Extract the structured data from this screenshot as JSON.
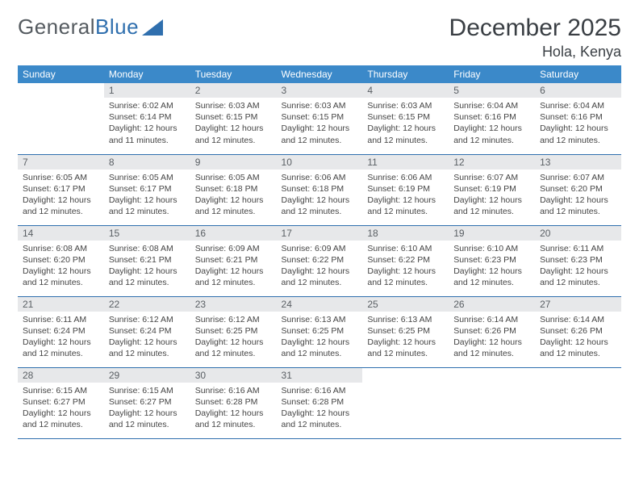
{
  "logo": {
    "text_gray": "General",
    "text_blue": "Blue"
  },
  "header": {
    "month": "December 2025",
    "location": "Hola, Kenya"
  },
  "colors": {
    "header_bg": "#3b89c9",
    "header_text": "#ffffff",
    "daynum_bg": "#e7e8ea",
    "rule": "#2f6fae",
    "logo_gray": "#555b60",
    "logo_blue": "#2f6fae"
  },
  "weekdays": [
    "Sunday",
    "Monday",
    "Tuesday",
    "Wednesday",
    "Thursday",
    "Friday",
    "Saturday"
  ],
  "weeks": [
    [
      {
        "n": "",
        "sr": "",
        "ss": "",
        "dl": ""
      },
      {
        "n": "1",
        "sr": "Sunrise: 6:02 AM",
        "ss": "Sunset: 6:14 PM",
        "dl": "Daylight: 12 hours and 11 minutes."
      },
      {
        "n": "2",
        "sr": "Sunrise: 6:03 AM",
        "ss": "Sunset: 6:15 PM",
        "dl": "Daylight: 12 hours and 12 minutes."
      },
      {
        "n": "3",
        "sr": "Sunrise: 6:03 AM",
        "ss": "Sunset: 6:15 PM",
        "dl": "Daylight: 12 hours and 12 minutes."
      },
      {
        "n": "4",
        "sr": "Sunrise: 6:03 AM",
        "ss": "Sunset: 6:15 PM",
        "dl": "Daylight: 12 hours and 12 minutes."
      },
      {
        "n": "5",
        "sr": "Sunrise: 6:04 AM",
        "ss": "Sunset: 6:16 PM",
        "dl": "Daylight: 12 hours and 12 minutes."
      },
      {
        "n": "6",
        "sr": "Sunrise: 6:04 AM",
        "ss": "Sunset: 6:16 PM",
        "dl": "Daylight: 12 hours and 12 minutes."
      }
    ],
    [
      {
        "n": "7",
        "sr": "Sunrise: 6:05 AM",
        "ss": "Sunset: 6:17 PM",
        "dl": "Daylight: 12 hours and 12 minutes."
      },
      {
        "n": "8",
        "sr": "Sunrise: 6:05 AM",
        "ss": "Sunset: 6:17 PM",
        "dl": "Daylight: 12 hours and 12 minutes."
      },
      {
        "n": "9",
        "sr": "Sunrise: 6:05 AM",
        "ss": "Sunset: 6:18 PM",
        "dl": "Daylight: 12 hours and 12 minutes."
      },
      {
        "n": "10",
        "sr": "Sunrise: 6:06 AM",
        "ss": "Sunset: 6:18 PM",
        "dl": "Daylight: 12 hours and 12 minutes."
      },
      {
        "n": "11",
        "sr": "Sunrise: 6:06 AM",
        "ss": "Sunset: 6:19 PM",
        "dl": "Daylight: 12 hours and 12 minutes."
      },
      {
        "n": "12",
        "sr": "Sunrise: 6:07 AM",
        "ss": "Sunset: 6:19 PM",
        "dl": "Daylight: 12 hours and 12 minutes."
      },
      {
        "n": "13",
        "sr": "Sunrise: 6:07 AM",
        "ss": "Sunset: 6:20 PM",
        "dl": "Daylight: 12 hours and 12 minutes."
      }
    ],
    [
      {
        "n": "14",
        "sr": "Sunrise: 6:08 AM",
        "ss": "Sunset: 6:20 PM",
        "dl": "Daylight: 12 hours and 12 minutes."
      },
      {
        "n": "15",
        "sr": "Sunrise: 6:08 AM",
        "ss": "Sunset: 6:21 PM",
        "dl": "Daylight: 12 hours and 12 minutes."
      },
      {
        "n": "16",
        "sr": "Sunrise: 6:09 AM",
        "ss": "Sunset: 6:21 PM",
        "dl": "Daylight: 12 hours and 12 minutes."
      },
      {
        "n": "17",
        "sr": "Sunrise: 6:09 AM",
        "ss": "Sunset: 6:22 PM",
        "dl": "Daylight: 12 hours and 12 minutes."
      },
      {
        "n": "18",
        "sr": "Sunrise: 6:10 AM",
        "ss": "Sunset: 6:22 PM",
        "dl": "Daylight: 12 hours and 12 minutes."
      },
      {
        "n": "19",
        "sr": "Sunrise: 6:10 AM",
        "ss": "Sunset: 6:23 PM",
        "dl": "Daylight: 12 hours and 12 minutes."
      },
      {
        "n": "20",
        "sr": "Sunrise: 6:11 AM",
        "ss": "Sunset: 6:23 PM",
        "dl": "Daylight: 12 hours and 12 minutes."
      }
    ],
    [
      {
        "n": "21",
        "sr": "Sunrise: 6:11 AM",
        "ss": "Sunset: 6:24 PM",
        "dl": "Daylight: 12 hours and 12 minutes."
      },
      {
        "n": "22",
        "sr": "Sunrise: 6:12 AM",
        "ss": "Sunset: 6:24 PM",
        "dl": "Daylight: 12 hours and 12 minutes."
      },
      {
        "n": "23",
        "sr": "Sunrise: 6:12 AM",
        "ss": "Sunset: 6:25 PM",
        "dl": "Daylight: 12 hours and 12 minutes."
      },
      {
        "n": "24",
        "sr": "Sunrise: 6:13 AM",
        "ss": "Sunset: 6:25 PM",
        "dl": "Daylight: 12 hours and 12 minutes."
      },
      {
        "n": "25",
        "sr": "Sunrise: 6:13 AM",
        "ss": "Sunset: 6:25 PM",
        "dl": "Daylight: 12 hours and 12 minutes."
      },
      {
        "n": "26",
        "sr": "Sunrise: 6:14 AM",
        "ss": "Sunset: 6:26 PM",
        "dl": "Daylight: 12 hours and 12 minutes."
      },
      {
        "n": "27",
        "sr": "Sunrise: 6:14 AM",
        "ss": "Sunset: 6:26 PM",
        "dl": "Daylight: 12 hours and 12 minutes."
      }
    ],
    [
      {
        "n": "28",
        "sr": "Sunrise: 6:15 AM",
        "ss": "Sunset: 6:27 PM",
        "dl": "Daylight: 12 hours and 12 minutes."
      },
      {
        "n": "29",
        "sr": "Sunrise: 6:15 AM",
        "ss": "Sunset: 6:27 PM",
        "dl": "Daylight: 12 hours and 12 minutes."
      },
      {
        "n": "30",
        "sr": "Sunrise: 6:16 AM",
        "ss": "Sunset: 6:28 PM",
        "dl": "Daylight: 12 hours and 12 minutes."
      },
      {
        "n": "31",
        "sr": "Sunrise: 6:16 AM",
        "ss": "Sunset: 6:28 PM",
        "dl": "Daylight: 12 hours and 12 minutes."
      },
      {
        "n": "",
        "sr": "",
        "ss": "",
        "dl": ""
      },
      {
        "n": "",
        "sr": "",
        "ss": "",
        "dl": ""
      },
      {
        "n": "",
        "sr": "",
        "ss": "",
        "dl": ""
      }
    ]
  ]
}
